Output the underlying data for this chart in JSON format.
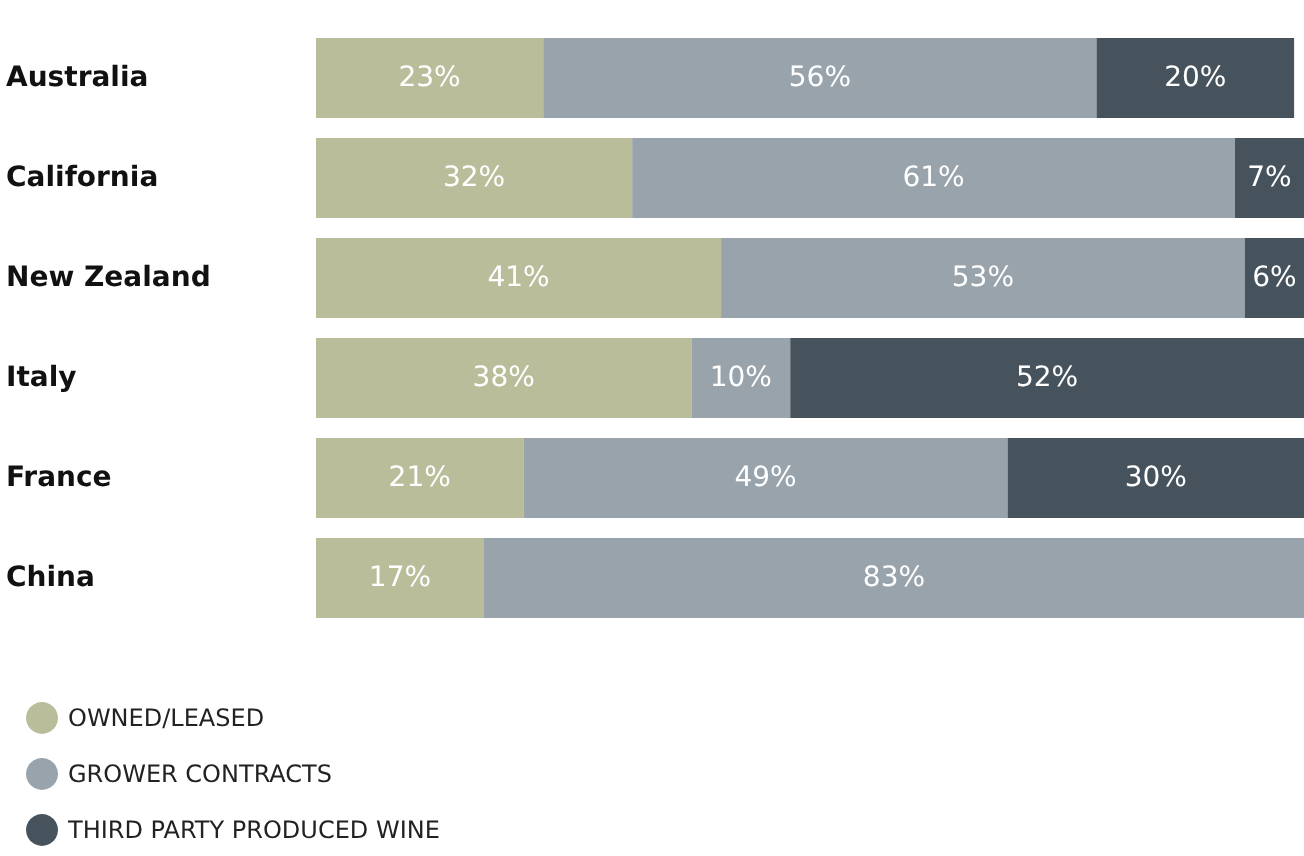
{
  "chart_data": {
    "type": "bar",
    "orientation": "horizontal",
    "stacked": true,
    "legend": "bottom left",
    "marker": "circle",
    "tick_labels": "y",
    "categories": [
      "Australia",
      "California",
      "New Zealand",
      "Italy",
      "France",
      "China"
    ],
    "series": [
      {
        "name": "OWNED/LEASED",
        "color": "#b9bd9a",
        "values": [
          23,
          32,
          41,
          38,
          21,
          17
        ],
        "value_labels": [
          "23%",
          "32%",
          "41%",
          "38%",
          "21%",
          "17%"
        ]
      },
      {
        "name": "GROWER CONTRACTS",
        "color": "#98a3ab",
        "values": [
          56,
          61,
          53,
          10,
          49,
          83
        ],
        "value_labels": [
          "56%",
          "61%",
          "53%",
          "10%",
          "49%",
          "83%"
        ]
      },
      {
        "name": "THIRD PARTY PRODUCED WINE",
        "color": "#46535d",
        "values": [
          20,
          7,
          6,
          52,
          30,
          null
        ],
        "value_labels": [
          "20%",
          "7%",
          "6%",
          "52%",
          "30%",
          null
        ]
      }
    ]
  }
}
